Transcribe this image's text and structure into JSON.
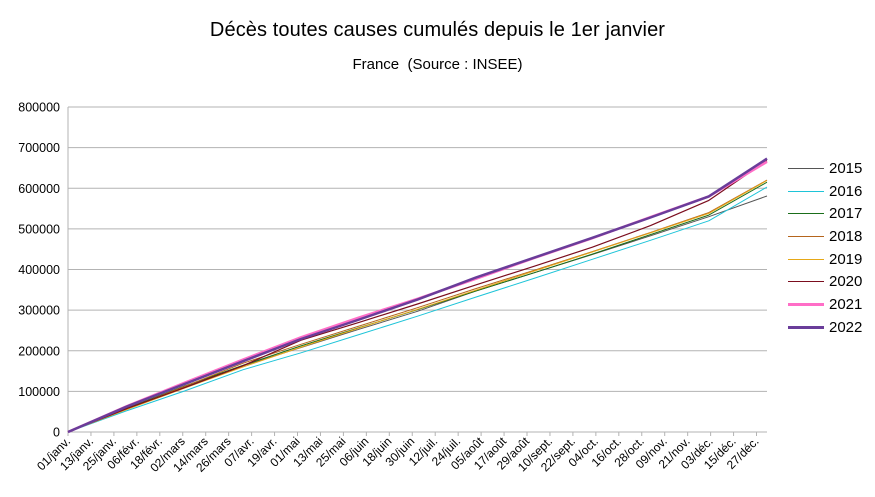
{
  "chart_data": {
    "type": "line",
    "title": "Décès toutes causes cumulés depuis le 1er janvier",
    "subtitle": "France  (Source : INSEE)",
    "xlabel": "",
    "ylabel": "",
    "ylim": [
      0,
      800000
    ],
    "yticks": [
      "0",
      "100000",
      "200000",
      "300000",
      "400000",
      "500000",
      "600000",
      "700000",
      "800000"
    ],
    "x_tick_labels": [
      "01/janv.",
      "13/janv.",
      "25/janv.",
      "06/févr.",
      "18/févr.",
      "02/mars",
      "14/mars",
      "26/mars",
      "07/avr.",
      "19/avr.",
      "01/mai",
      "13/mai",
      "25/mai",
      "06/juin",
      "18/juin",
      "30/juin",
      "12/juil.",
      "24/juil.",
      "05/août",
      "17/août",
      "29/août",
      "10/sept.",
      "22/sept.",
      "04/oct.",
      "16/oct.",
      "28/oct.",
      "09/nov.",
      "21/nov.",
      "03/déc.",
      "15/déc.",
      "27/déc."
    ],
    "grid": "horizontal",
    "legend_position": "right",
    "x_points": [
      "01/janv.",
      "01/févr.",
      "01/mars",
      "01/avr.",
      "01/mai",
      "01/juin",
      "01/juil.",
      "01/août",
      "01/sept.",
      "01/oct.",
      "01/nov.",
      "01/déc.",
      "31/déc."
    ],
    "series": [
      {
        "name": "2015",
        "color": "#555555",
        "width": 1,
        "values": [
          0,
          57000,
          111000,
          163000,
          208000,
          253000,
          297000,
          347000,
          392000,
          437000,
          483000,
          530000,
          581000
        ]
      },
      {
        "name": "2016",
        "color": "#1ec4d8",
        "width": 1,
        "values": [
          0,
          52000,
          101000,
          153000,
          195000,
          240000,
          285000,
          332000,
          378000,
          425000,
          472000,
          520000,
          603000
        ]
      },
      {
        "name": "2017",
        "color": "#1a6e1a",
        "width": 1,
        "values": [
          0,
          58000,
          113000,
          164000,
          212000,
          257000,
          301000,
          347000,
          392000,
          438000,
          486000,
          534000,
          615000
        ]
      },
      {
        "name": "2018",
        "color": "#b5651d",
        "width": 1,
        "values": [
          0,
          56000,
          112000,
          169000,
          216000,
          261000,
          306000,
          353000,
          398000,
          444000,
          491000,
          540000,
          620000
        ]
      },
      {
        "name": "2019",
        "color": "#e6a817",
        "width": 1,
        "values": [
          0,
          55000,
          108000,
          160000,
          209000,
          256000,
          302000,
          349000,
          396000,
          443000,
          490000,
          538000,
          619000
        ]
      },
      {
        "name": "2020",
        "color": "#7b0d1e",
        "width": 1.2,
        "values": [
          0,
          57000,
          109000,
          163000,
          226000,
          270000,
          315000,
          362000,
          408000,
          455000,
          508000,
          570000,
          668000
        ]
      },
      {
        "name": "2021",
        "color": "#ff6ec7",
        "width": 2.5,
        "values": [
          0,
          63000,
          121000,
          178000,
          233000,
          282000,
          328000,
          377000,
          428000,
          477000,
          529000,
          580000,
          665000
        ]
      },
      {
        "name": "2022",
        "color": "#6a3d9a",
        "width": 2.5,
        "values": [
          0,
          62000,
          118000,
          174000,
          229000,
          277000,
          326000,
          380000,
          429000,
          478000,
          528000,
          580000,
          673000
        ]
      }
    ]
  }
}
